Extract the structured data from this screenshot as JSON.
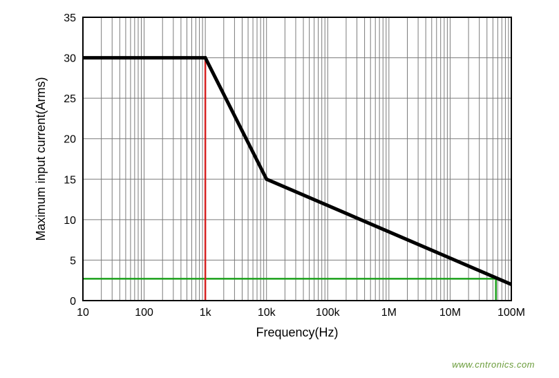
{
  "chart": {
    "type": "line",
    "xlabel": "Frequency(Hz)",
    "ylabel": "Maximum input current(Arms)",
    "label_fontsize": 18,
    "tick_fontsize": 16,
    "xscale": "log",
    "yscale": "linear",
    "xlim": [
      10,
      100000000
    ],
    "ylim": [
      0,
      35
    ],
    "ytick_step": 5,
    "xticks": [
      10,
      100,
      1000,
      10000,
      100000,
      1000000,
      10000000,
      100000000
    ],
    "xtick_labels": [
      "10",
      "100",
      "1k",
      "10k",
      "100k",
      "1M",
      "10M",
      "100M"
    ],
    "yticks": [
      0,
      5,
      10,
      15,
      20,
      25,
      30,
      35
    ],
    "background_color": "#ffffff",
    "axis_color": "#000000",
    "grid_color": "#7a7a7a",
    "grid_line_width": 1,
    "plot_border_width": 2,
    "main_series": {
      "color": "#000000",
      "line_width": 5,
      "points": [
        {
          "x": 10,
          "y": 30
        },
        {
          "x": 1000,
          "y": 30
        },
        {
          "x": 10000,
          "y": 15
        },
        {
          "x": 100000000,
          "y": 2
        }
      ]
    },
    "red_marker": {
      "color": "#d62020",
      "line_width": 2.5,
      "type": "vertical",
      "x": 1000,
      "y_from": 0,
      "y_to": 30
    },
    "green_marker": {
      "color": "#1aa01a",
      "line_width": 2.5,
      "type": "L-shape",
      "y": 2.7,
      "x_from": 10,
      "x_to": 56000000,
      "drop_to_y": 0
    }
  },
  "watermark": {
    "text": "www.cntronics.com",
    "color": "#6a9c3a",
    "fontsize": 13
  }
}
